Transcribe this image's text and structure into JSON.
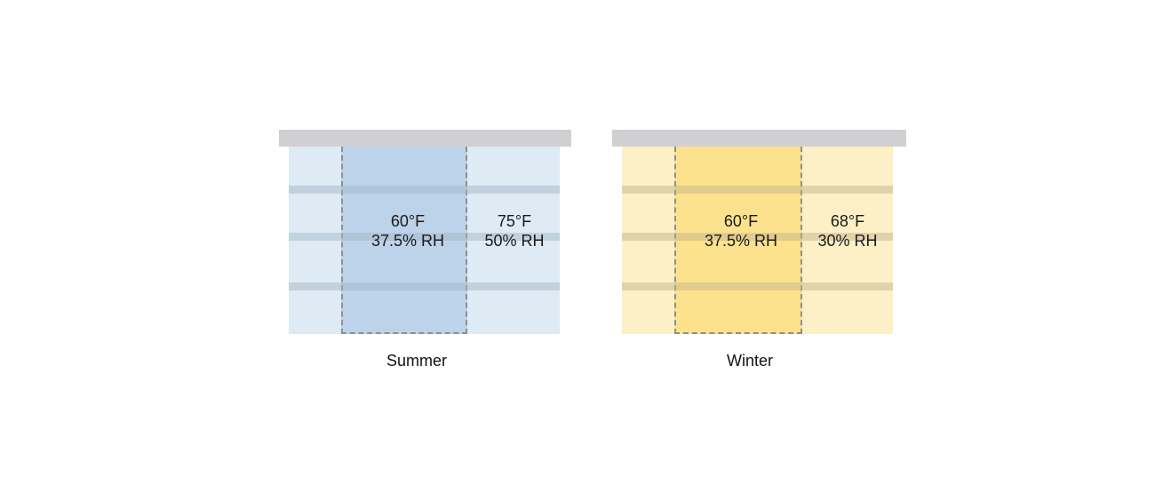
{
  "panels": [
    {
      "label": "Summer",
      "zone": {
        "temp": "60°F",
        "rh": "37.5% RH"
      },
      "outside": {
        "temp": "75°F",
        "rh": "50% RH"
      },
      "colors": {
        "roof": "#d0d0d2",
        "building": "#deeaf4",
        "zone": "#bcd3ea",
        "stripe": "rgba(160,180,195,0.45)"
      }
    },
    {
      "label": "Winter",
      "zone": {
        "temp": "60°F",
        "rh": "37.5% RH"
      },
      "outside": {
        "temp": "68°F",
        "rh": "30% RH"
      },
      "colors": {
        "roof": "#d0d0d2",
        "building": "#fdefc6",
        "zone": "#fde28e",
        "stripe": "rgba(190,175,140,0.45)"
      }
    }
  ]
}
